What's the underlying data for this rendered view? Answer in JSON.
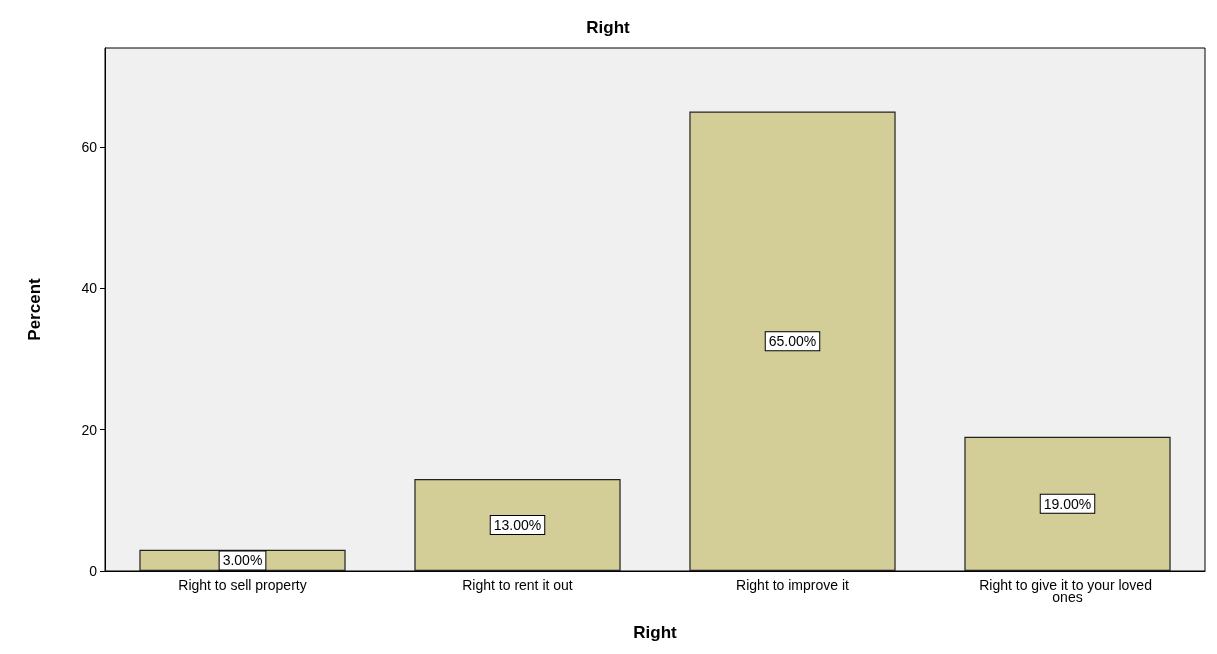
{
  "chart_data": {
    "type": "bar",
    "title": "Right",
    "xlabel": "Right",
    "ylabel": "Percent",
    "categories": [
      "Right to sell property",
      "Right to rent it out",
      "Right to improve it",
      "Right to give it to your loved ones"
    ],
    "values": [
      3,
      13,
      65,
      19
    ],
    "value_labels": [
      "3.00%",
      "13.00%",
      "65.00%",
      "19.00%"
    ],
    "color": "#d3ce97",
    "ylim": [
      0,
      74
    ],
    "yticks": [
      0,
      20,
      40,
      60
    ],
    "grid": false
  }
}
